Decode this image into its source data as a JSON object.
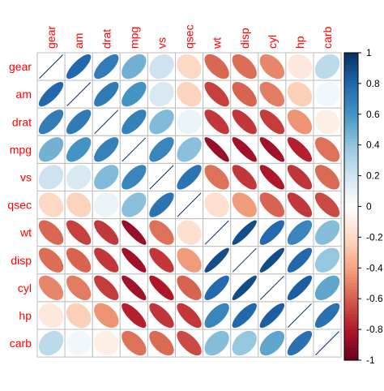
{
  "chart_data": {
    "type": "heatmap",
    "style": "correlation-matrix-ellipses",
    "variables": [
      "gear",
      "am",
      "drat",
      "mpg",
      "vs",
      "qsec",
      "wt",
      "disp",
      "cyl",
      "hp",
      "carb"
    ],
    "matrix": [
      [
        1.0,
        0.79,
        0.7,
        0.48,
        0.21,
        -0.21,
        -0.58,
        -0.56,
        -0.49,
        -0.13,
        0.27
      ],
      [
        0.79,
        1.0,
        0.71,
        0.6,
        0.17,
        -0.23,
        -0.69,
        -0.59,
        -0.52,
        -0.24,
        0.06
      ],
      [
        0.7,
        0.71,
        1.0,
        0.68,
        0.44,
        0.09,
        -0.71,
        -0.71,
        -0.7,
        -0.45,
        -0.09
      ],
      [
        0.48,
        0.6,
        0.68,
        1.0,
        0.66,
        0.42,
        -0.87,
        -0.85,
        -0.85,
        -0.78,
        -0.55
      ],
      [
        0.21,
        0.17,
        0.44,
        0.66,
        1.0,
        0.74,
        -0.55,
        -0.71,
        -0.81,
        -0.72,
        -0.57
      ],
      [
        -0.21,
        -0.23,
        0.09,
        0.42,
        0.74,
        1.0,
        -0.17,
        -0.43,
        -0.59,
        -0.71,
        -0.66
      ],
      [
        -0.58,
        -0.69,
        -0.71,
        -0.87,
        -0.55,
        -0.17,
        1.0,
        0.89,
        0.78,
        0.66,
        0.43
      ],
      [
        -0.56,
        -0.59,
        -0.71,
        -0.85,
        -0.71,
        -0.43,
        0.89,
        1.0,
        0.9,
        0.79,
        0.39
      ],
      [
        -0.49,
        -0.52,
        -0.7,
        -0.85,
        -0.81,
        -0.59,
        0.78,
        0.9,
        1.0,
        0.83,
        0.53
      ],
      [
        -0.13,
        -0.24,
        -0.45,
        -0.78,
        -0.72,
        -0.71,
        0.66,
        0.79,
        0.83,
        1.0,
        0.75
      ],
      [
        0.27,
        0.06,
        -0.09,
        -0.55,
        -0.57,
        -0.66,
        0.43,
        0.39,
        0.53,
        0.75,
        1.0
      ]
    ],
    "colorbar": {
      "range": [
        -1,
        1
      ],
      "ticks": [
        "1",
        "0.8",
        "0.6",
        "0.4",
        "0.2",
        "0",
        "-0.2",
        "-0.4",
        "-0.6",
        "-0.8",
        "-1"
      ],
      "palette": [
        "#67001F",
        "#B2182B",
        "#D6604D",
        "#F4A582",
        "#FDDBC7",
        "#FFFFFF",
        "#D1E5F0",
        "#92C5DE",
        "#4393C3",
        "#2166AC",
        "#053061"
      ]
    },
    "label_color": "#FF0000",
    "grid_color": "#BEBEBE"
  }
}
